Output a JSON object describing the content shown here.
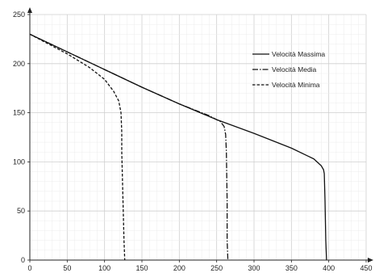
{
  "chart_data": {
    "type": "line",
    "title": "",
    "xlabel": "",
    "ylabel": "",
    "xlim": [
      0,
      450
    ],
    "ylim": [
      0,
      250
    ],
    "x_ticks": [
      "0",
      "50",
      "100",
      "150",
      "200",
      "250",
      "300",
      "350",
      "400",
      "450"
    ],
    "y_ticks": [
      "0",
      "50",
      "100",
      "150",
      "200",
      "250"
    ],
    "grid": true,
    "legend_position": "top-right",
    "series": [
      {
        "name": "Velocità Massima",
        "style": "solid",
        "points": [
          [
            0,
            230
          ],
          [
            50,
            212
          ],
          [
            100,
            194
          ],
          [
            150,
            176
          ],
          [
            200,
            159
          ],
          [
            250,
            143
          ],
          [
            300,
            129
          ],
          [
            350,
            114
          ],
          [
            380,
            103
          ],
          [
            390,
            96
          ],
          [
            393,
            92
          ],
          [
            394,
            88
          ],
          [
            395,
            60
          ],
          [
            396,
            20
          ],
          [
            397,
            0
          ]
        ]
      },
      {
        "name": "Velocità Media",
        "style": "dashdot",
        "points": [
          [
            0,
            230
          ],
          [
            50,
            212
          ],
          [
            100,
            194
          ],
          [
            150,
            176
          ],
          [
            200,
            159
          ],
          [
            240,
            147
          ],
          [
            255,
            141
          ],
          [
            260,
            136
          ],
          [
            262,
            128
          ],
          [
            263,
            110
          ],
          [
            264,
            60
          ],
          [
            264,
            20
          ],
          [
            265,
            0
          ]
        ]
      },
      {
        "name": "Velocità Minima",
        "style": "dashed",
        "points": [
          [
            0,
            230
          ],
          [
            50,
            210
          ],
          [
            80,
            196
          ],
          [
            100,
            184
          ],
          [
            112,
            172
          ],
          [
            119,
            162
          ],
          [
            122,
            150
          ],
          [
            123,
            130
          ],
          [
            123,
            110
          ],
          [
            124,
            80
          ],
          [
            125,
            50
          ],
          [
            126,
            20
          ],
          [
            127,
            0
          ]
        ]
      }
    ]
  }
}
